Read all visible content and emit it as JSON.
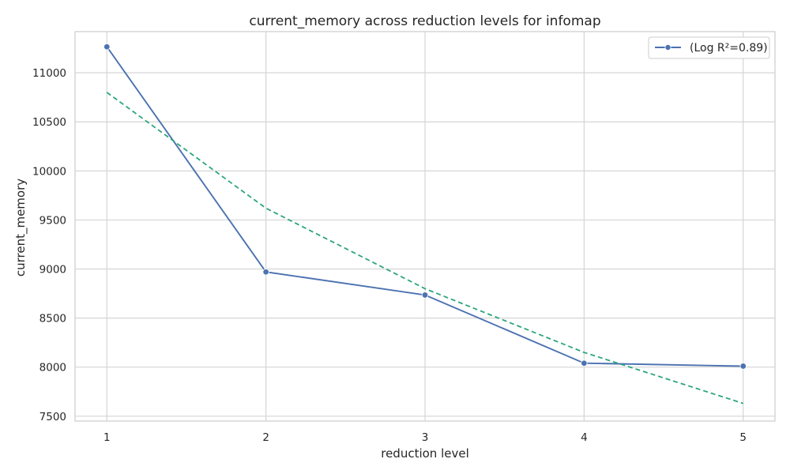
{
  "chart_data": {
    "type": "line",
    "title": "current_memory across reduction levels for infomap",
    "xlabel": "reduction level",
    "ylabel": "current_memory",
    "x_ticks": [
      "1",
      "2",
      "3",
      "4",
      "5"
    ],
    "y_ticks": [
      "7500",
      "8000",
      "8500",
      "9000",
      "9500",
      "10000",
      "10500",
      "11000"
    ],
    "xlim": [
      0.8,
      5.2
    ],
    "ylim": [
      7450,
      11420
    ],
    "grid": true,
    "legend_position": "top-right",
    "series": [
      {
        "name": "(Log R²=0.89)",
        "style": "solid-marker",
        "color": "#4c72b0",
        "x": [
          1,
          2,
          3,
          4,
          5
        ],
        "y": [
          11265,
          8970,
          8735,
          8040,
          8010
        ]
      },
      {
        "style": "dashed",
        "color": "#2ca57a",
        "x": [
          1,
          2,
          3,
          4,
          5
        ],
        "y": [
          10800,
          9620,
          8800,
          8150,
          7630
        ]
      }
    ]
  }
}
